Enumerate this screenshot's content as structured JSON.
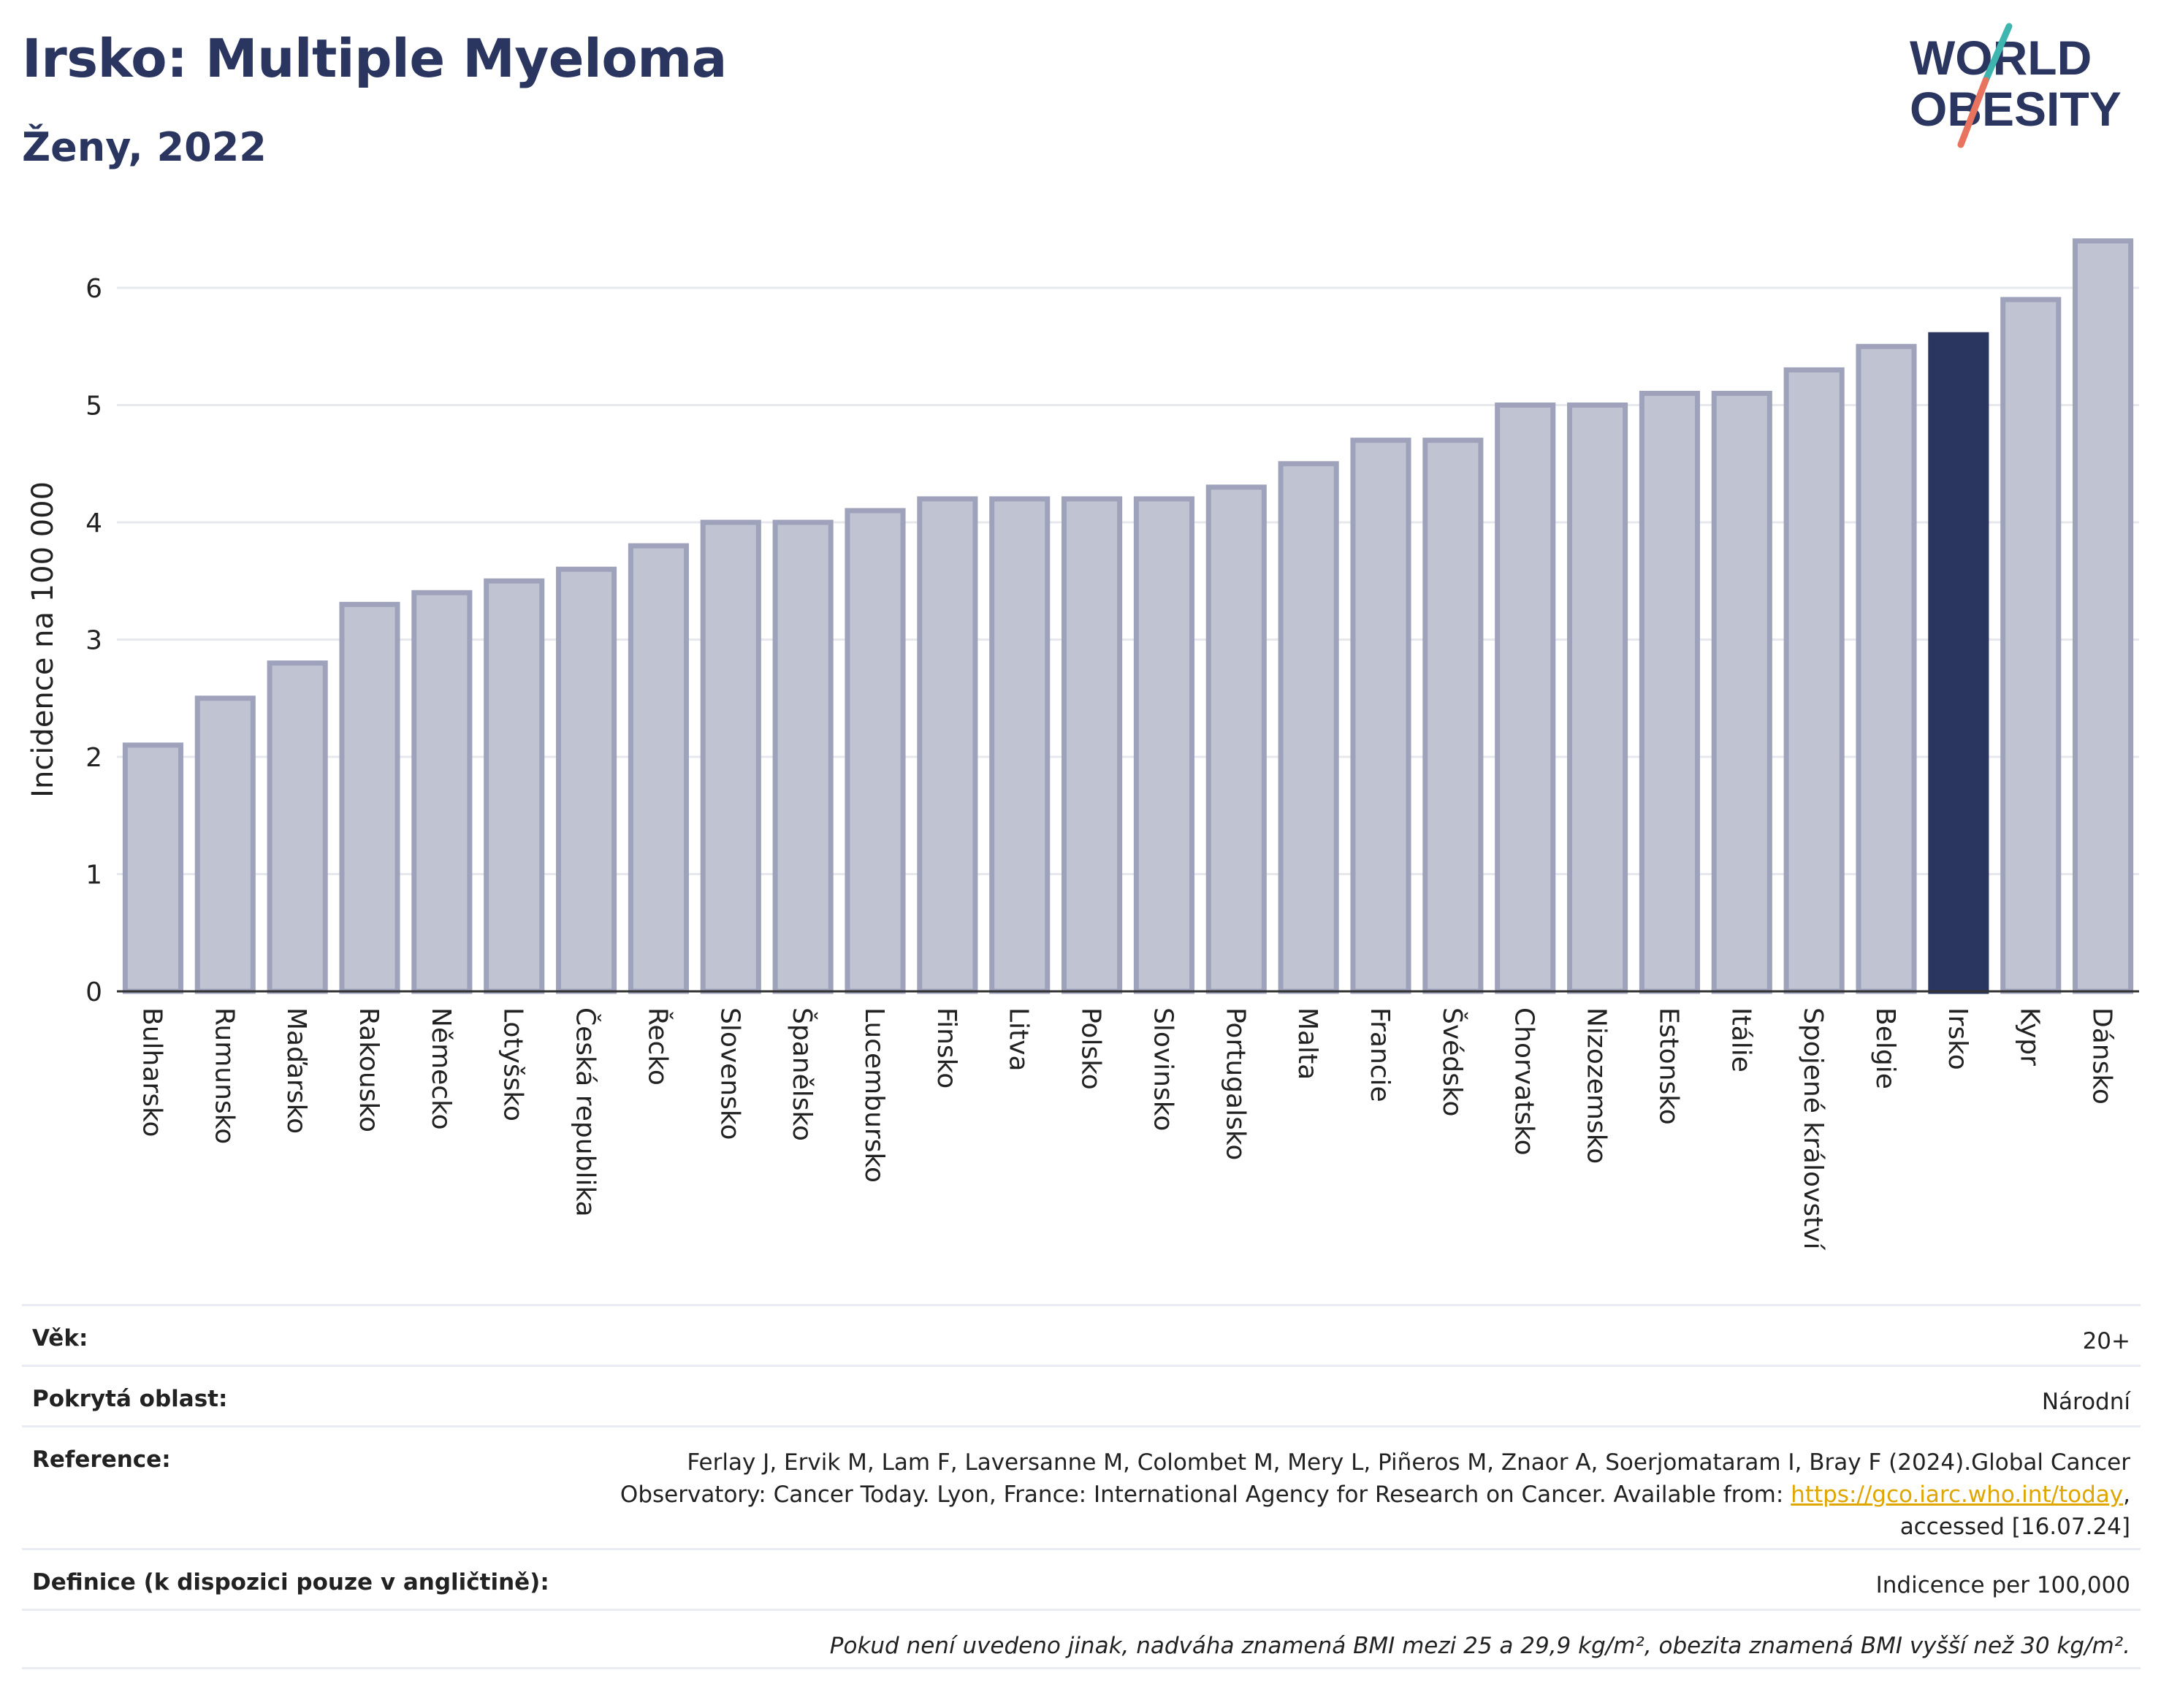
{
  "header": {
    "title": "Irsko: Multiple Myeloma",
    "subtitle": "Ženy, 2022",
    "logo_line1": "WORLD",
    "logo_line2": "OBESITY"
  },
  "colors": {
    "bar": "#c0c3d2",
    "bar_border": "#9ea3bb",
    "highlight": "#2a3560",
    "grid": "#e6e8ee",
    "logo_slash_teal": "#3fb5b0",
    "logo_slash_coral": "#e8735f"
  },
  "chart_data": {
    "type": "bar",
    "ylabel": "Incidence na 100 000",
    "xlabel": "",
    "ylim": [
      0,
      6.5
    ],
    "yticks": [
      0,
      1,
      2,
      3,
      4,
      5,
      6
    ],
    "grid": true,
    "highlight": "Irsko",
    "categories": [
      "Bulharsko",
      "Rumunsko",
      "Maďarsko",
      "Rakousko",
      "Německo",
      "Lotyšsko",
      "Česká republika",
      "Řecko",
      "Slovensko",
      "Španělsko",
      "Lucembursko",
      "Finsko",
      "Litva",
      "Polsko",
      "Slovinsko",
      "Portugalsko",
      "Malta",
      "Francie",
      "Švédsko",
      "Chorvatsko",
      "Nizozemsko",
      "Estonsko",
      "Itálie",
      "Spojené království",
      "Belgie",
      "Irsko",
      "Kypr",
      "Dánsko"
    ],
    "values": [
      2.1,
      2.5,
      2.8,
      3.3,
      3.4,
      3.5,
      3.6,
      3.8,
      4.0,
      4.0,
      4.1,
      4.2,
      4.2,
      4.2,
      4.2,
      4.3,
      4.5,
      4.7,
      4.7,
      5.0,
      5.0,
      5.1,
      5.1,
      5.3,
      5.5,
      5.6,
      5.9,
      6.4
    ]
  },
  "info": {
    "age_label": "Věk:",
    "age_value": "20+",
    "area_label": "Pokrytá oblast:",
    "area_value": "Národní",
    "reference_label": "Reference:",
    "reference_line1": "Ferlay J, Ervik M, Lam F, Laversanne M, Colombet M, Mery L, Piñeros M, Znaor A, Soerjomataram I, Bray F (2024).Global Cancer",
    "reference_line2_pre": "Observatory: Cancer Today. Lyon, France: International Agency for Research on Cancer. Available from: ",
    "reference_link": "https://gco.iarc.who.int/today",
    "reference_line2_post": ",",
    "reference_line3": "accessed [16.07.24]",
    "definition_label": "Definice (k dispozici pouze v angličtině):",
    "definition_value": "Indicence per 100,000",
    "note": "Pokud není uvedeno jinak, nadváha znamená BMI mezi 25 a 29,9 kg/m², obezita znamená BMI vyšší než 30 kg/m²."
  }
}
